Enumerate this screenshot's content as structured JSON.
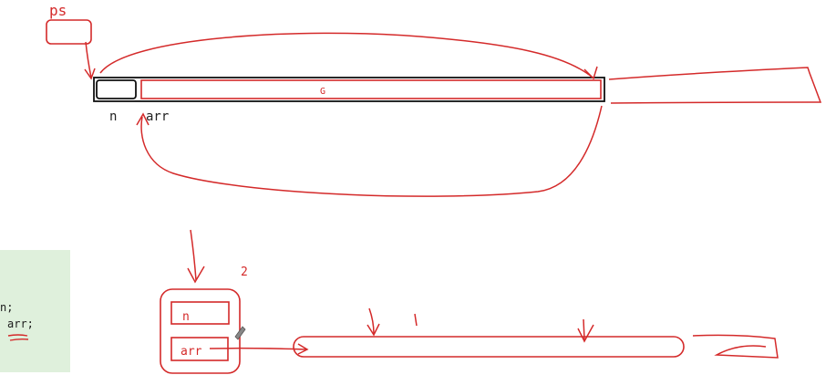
{
  "labels": {
    "ps": "ps",
    "n_top": "n",
    "arr_top": "arr",
    "mid_mark": "G",
    "n_box": "n",
    "arr_box": "arr",
    "num_two": "2"
  },
  "code_panel": {
    "lines": [
      "n;",
      "arr;"
    ]
  },
  "colors": {
    "ink_red": "#d42a2a",
    "ink_black": "#111111",
    "code_bg": "#dff0dc"
  }
}
